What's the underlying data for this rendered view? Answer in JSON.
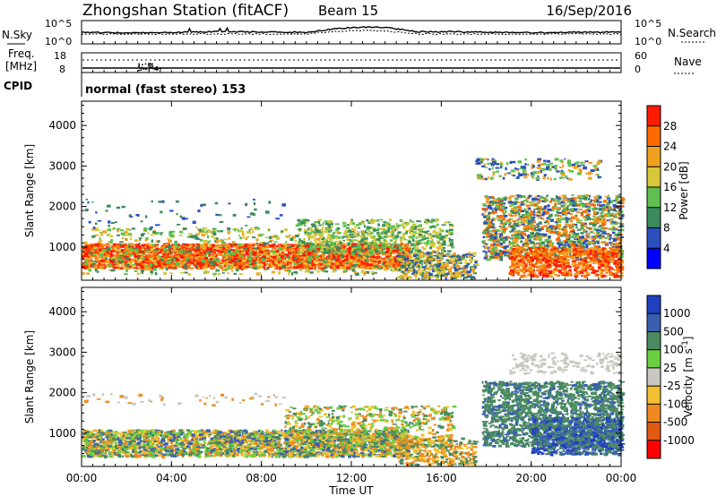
{
  "header": {
    "title": "Zhongshan Station (fitACF)",
    "beam": "Beam 15",
    "date": "16/Sep/2016"
  },
  "sky_panel": {
    "left_label": "N.Sky",
    "left_ticks": [
      "10^5",
      "10^0"
    ],
    "right_label": "N.Search",
    "right_ticks": [
      "10^5",
      "10^0"
    ]
  },
  "freq_panel": {
    "left_label_1": "Freq.",
    "left_label_2": "[MHz]",
    "left_ticks": [
      "18",
      "8"
    ],
    "right_label": "Nave",
    "right_ticks": [
      "60",
      "0"
    ],
    "cpid_label": "CPID",
    "cpid_text": "normal (fast stereo) 153"
  },
  "colors": {
    "power_scale": [
      "#0000ff",
      "#2a4fbf",
      "#3a8a5c",
      "#5fbf4f",
      "#d6c83a",
      "#f0a020",
      "#ff6a00",
      "#ff1a00"
    ],
    "velocity_scale": [
      "#2040c0",
      "#3a5fb0",
      "#4a8a60",
      "#6ad040",
      "#c8c8c0",
      "#f0c030",
      "#f08a20",
      "#e05a10",
      "#ff0000"
    ]
  },
  "chart_data": [
    {
      "type": "heatmap",
      "name": "power",
      "ylabel": "Slant Range [km]",
      "yticks": [
        "1000",
        "2000",
        "3000",
        "4000"
      ],
      "yticks_values": [
        1000,
        2000,
        3000,
        4000
      ],
      "ylim": [
        180,
        4600
      ],
      "xlim": [
        0,
        24
      ],
      "colorbar_label": "Power [dB]",
      "colorbar_ticks": [
        "4",
        "8",
        "12",
        "16",
        "20",
        "24",
        "28"
      ]
    },
    {
      "type": "heatmap",
      "name": "velocity",
      "ylabel": "Slant Range [km]",
      "yticks": [
        "1000",
        "2000",
        "3000",
        "4000"
      ],
      "yticks_values": [
        1000,
        2000,
        3000,
        4000
      ],
      "ylim": [
        180,
        4600
      ],
      "xlim": [
        0,
        24
      ],
      "xlabel": "Time UT",
      "xticks": [
        "00:00",
        "04:00",
        "08:00",
        "12:00",
        "16:00",
        "20:00",
        "00:00"
      ],
      "xticks_values": [
        0,
        4,
        8,
        12,
        16,
        20,
        24
      ],
      "colorbar_label": "Velocity [m s",
      "colorbar_label_sup": "-1",
      "colorbar_label_end": "]",
      "colorbar_ticks": [
        "1000",
        "500",
        "100",
        "25",
        "-25",
        "-100",
        "-500",
        "-1000"
      ]
    }
  ]
}
